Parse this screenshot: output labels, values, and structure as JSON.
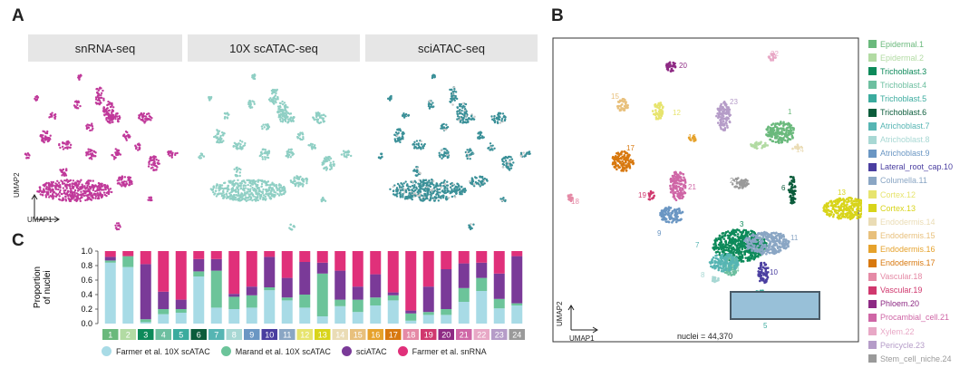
{
  "panels": {
    "a": "A",
    "b": "B",
    "c": "C"
  },
  "umap_titles": [
    "snRNA-seq",
    "10X scATAC-seq",
    "sciATAC-seq"
  ],
  "umap_axes": {
    "x": "UMAP1",
    "y": "UMAP2"
  },
  "nuclei_text": "nuclei = 44,370",
  "colors": {
    "snrna": "#c0399a",
    "tenx": "#8fcfc4",
    "sciatac": "#3a9098",
    "farmer_atac": "#a8dbe6",
    "marand_atac": "#6cc49a",
    "sciatac_bar": "#7a3a98",
    "farmer_snrna": "#e0307a"
  },
  "clusters": [
    {
      "id": "1",
      "name": "Epidermal.1",
      "color": "#6ab97c"
    },
    {
      "id": "2",
      "name": "Epidermal.2",
      "color": "#b2dba3"
    },
    {
      "id": "3",
      "name": "Trichoblast.3",
      "color": "#0d8a5a"
    },
    {
      "id": "4",
      "name": "Trichoblast.4",
      "color": "#6dbfa0"
    },
    {
      "id": "5",
      "name": "Trichoblast.5",
      "color": "#3bab9e"
    },
    {
      "id": "6",
      "name": "Trichoblast.6",
      "color": "#0b5c3b"
    },
    {
      "id": "7",
      "name": "Atrichoblast.7",
      "color": "#56b5b3"
    },
    {
      "id": "8",
      "name": "Atrichoblast.8",
      "color": "#a8d8d4"
    },
    {
      "id": "9",
      "name": "Atrichoblast.9",
      "color": "#6a96c3"
    },
    {
      "id": "10",
      "name": "Lateral_root_cap.10",
      "color": "#4a3ea0"
    },
    {
      "id": "11",
      "name": "Columella.11",
      "color": "#8aa6c4"
    },
    {
      "id": "12",
      "name": "Cortex.12",
      "color": "#e7e46e"
    },
    {
      "id": "13",
      "name": "Cortex.13",
      "color": "#d8d41a"
    },
    {
      "id": "14",
      "name": "Endodermis.14",
      "color": "#eadcb5"
    },
    {
      "id": "15",
      "name": "Endodermis.15",
      "color": "#e8c07c"
    },
    {
      "id": "16",
      "name": "Endodermis.16",
      "color": "#e6a22c"
    },
    {
      "id": "17",
      "name": "Endodermis.17",
      "color": "#d8780e"
    },
    {
      "id": "18",
      "name": "Vascular.18",
      "color": "#e58aa6"
    },
    {
      "id": "19",
      "name": "Vascular.19",
      "color": "#d0386e"
    },
    {
      "id": "20",
      "name": "Phloem.20",
      "color": "#8e2a84"
    },
    {
      "id": "21",
      "name": "Procambial_cell.21",
      "color": "#cf66a6"
    },
    {
      "id": "22",
      "name": "Xylem.22",
      "color": "#e8a8c6"
    },
    {
      "id": "23",
      "name": "Pericycle.23",
      "color": "#b59cc8"
    },
    {
      "id": "24",
      "name": "Stem_cell_niche.24",
      "color": "#9a9a9a"
    }
  ],
  "chart_data": {
    "type": "bar",
    "stacked": true,
    "ylabel": "Proportion\nof nuclei",
    "ylim": [
      0,
      1
    ],
    "yticks": [
      "0.0",
      "0.2",
      "0.4",
      "0.6",
      "0.8",
      "1.0"
    ],
    "categories": [
      "1",
      "2",
      "3",
      "4",
      "5",
      "6",
      "7",
      "8",
      "9",
      "10",
      "11",
      "12",
      "13",
      "14",
      "15",
      "16",
      "17",
      "18",
      "19",
      "20",
      "21",
      "22",
      "23",
      "24"
    ],
    "series": [
      {
        "name": "Farmer et al. 10X scATAC",
        "values": [
          0.84,
          0.78,
          0.02,
          0.13,
          0.15,
          0.65,
          0.22,
          0.2,
          0.22,
          0.46,
          0.32,
          0.22,
          0.1,
          0.24,
          0.16,
          0.25,
          0.32,
          0.04,
          0.12,
          0.12,
          0.3,
          0.45,
          0.21,
          0.25
        ]
      },
      {
        "name": "Marand et al. 10X scATAC",
        "values": [
          0.03,
          0.15,
          0.04,
          0.07,
          0.05,
          0.07,
          0.51,
          0.17,
          0.17,
          0.04,
          0.04,
          0.18,
          0.59,
          0.09,
          0.17,
          0.11,
          0.07,
          0.1,
          0.04,
          0.08,
          0.19,
          0.18,
          0.13,
          0.03
        ]
      },
      {
        "name": "sciATAC",
        "values": [
          0.05,
          0.0,
          0.76,
          0.24,
          0.13,
          0.17,
          0.16,
          0.04,
          0.12,
          0.42,
          0.27,
          0.45,
          0.15,
          0.4,
          0.18,
          0.32,
          0.04,
          0.04,
          0.35,
          0.55,
          0.34,
          0.21,
          0.35,
          0.65
        ]
      },
      {
        "name": "Farmer et al. snRNA",
        "values": [
          0.08,
          0.07,
          0.18,
          0.56,
          0.67,
          0.11,
          0.11,
          0.59,
          0.49,
          0.08,
          0.37,
          0.15,
          0.16,
          0.27,
          0.49,
          0.32,
          0.57,
          0.82,
          0.49,
          0.25,
          0.17,
          0.16,
          0.31,
          0.07
        ]
      }
    ]
  }
}
